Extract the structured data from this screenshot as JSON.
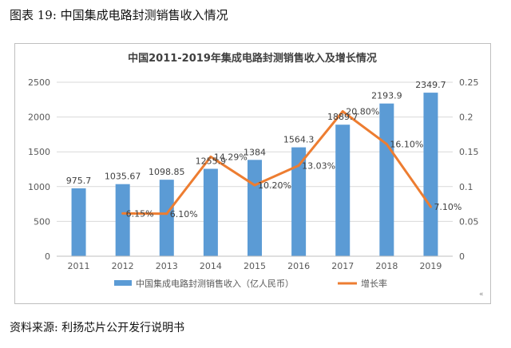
{
  "figure_caption": "图表 19: 中国集成电路封测销售收入情况",
  "source_note": "资料来源: 利扬芯片公开发行说明书",
  "corner_mark": "«",
  "colors": {
    "bar": "#5b9bd5",
    "line": "#ed7d31"
  },
  "chart_data": {
    "type": "bar",
    "title": "中国2011-2019年集成电路封测销售收入及增长情况",
    "categories": [
      "2011",
      "2012",
      "2013",
      "2014",
      "2015",
      "2016",
      "2017",
      "2018",
      "2019"
    ],
    "series": [
      {
        "name": "中国集成电路封测销售收入（亿人民币）",
        "type": "bar",
        "axis": "left",
        "values": [
          975.7,
          1035.67,
          1098.85,
          1255.9,
          1384,
          1564.3,
          1889.7,
          2193.9,
          2349.7
        ],
        "labels": [
          "975.7",
          "1035.67",
          "1098.85",
          "1255.9",
          "1384",
          "1564.3",
          "1889.7",
          "2193.9",
          "2349.7"
        ]
      },
      {
        "name": "增长率",
        "type": "line",
        "axis": "right",
        "values": [
          null,
          0.0615,
          0.061,
          0.1429,
          0.102,
          0.1303,
          0.208,
          0.161,
          0.071
        ],
        "labels": [
          null,
          "6.15%",
          "6.10%",
          "14.29%",
          "10.20%",
          "13.03%",
          "20.80%",
          "16.10%",
          "7.10%"
        ]
      }
    ],
    "y_left": {
      "min": 0,
      "max": 2500,
      "ticks": [
        "0",
        "500",
        "1000",
        "1500",
        "2000",
        "2500"
      ]
    },
    "y_right": {
      "min": 0,
      "max": 0.25,
      "ticks": [
        "0",
        "0.05",
        "0.1",
        "0.15",
        "0.2",
        "0.25"
      ]
    },
    "grid": true,
    "legend_position": "bottom"
  }
}
